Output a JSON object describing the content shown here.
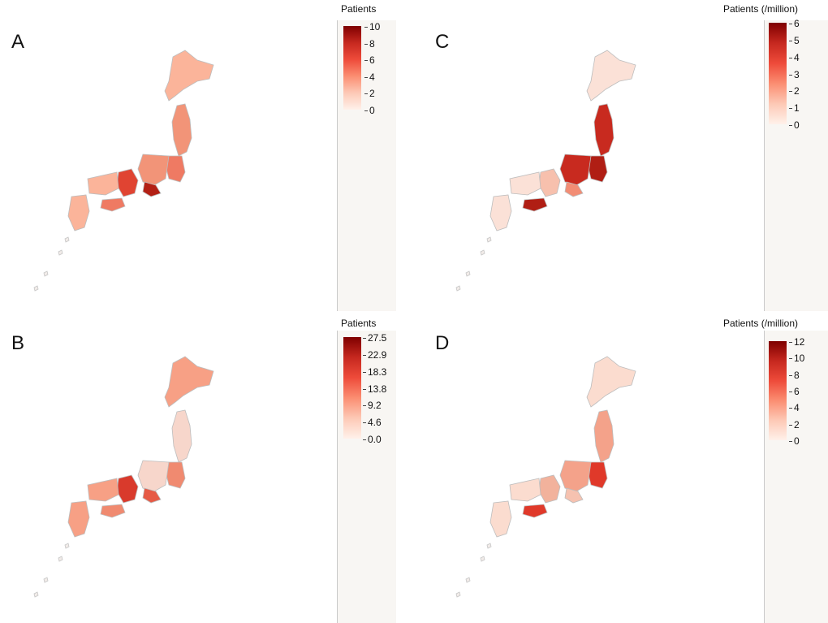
{
  "panels": [
    {
      "letter": "A",
      "legend_title": "Patients",
      "ticks": [
        "10",
        "8",
        "6",
        "4",
        "2",
        "0"
      ],
      "colors": {
        "hokkaido": "#fbb49a",
        "tohoku": "#f29478",
        "kansai": "#e04432",
        "tokai": "#b32015",
        "accent": "#ef7a63"
      }
    },
    {
      "letter": "B",
      "legend_title": "Patients",
      "ticks": [
        "27.5",
        "22.9",
        "18.3",
        "13.8",
        "9.2",
        "4.6",
        "0.0"
      ],
      "colors": {
        "hokkaido": "#f7a085",
        "tohoku": "#f7d6cb",
        "kansai": "#d93a2c",
        "tokai": "#e65a45",
        "accent": "#f08a70"
      }
    },
    {
      "letter": "C",
      "legend_title": "Patients (/million)",
      "ticks": [
        "6",
        "5",
        "4",
        "3",
        "2",
        "1",
        "0"
      ],
      "colors": {
        "hokkaido": "#fbe1d7",
        "tohoku": "#c82a1f",
        "kansai": "#f7c0ad",
        "tokai": "#f28d75",
        "accent": "#b01e14"
      }
    },
    {
      "letter": "D",
      "legend_title": "Patients (/million)",
      "ticks": [
        "12",
        "10",
        "8",
        "6",
        "4",
        "2",
        "0"
      ],
      "colors": {
        "hokkaido": "#fbdccf",
        "tohoku": "#f4a28a",
        "kansai": "#f2b29c",
        "tokai": "#f6c2b0",
        "accent": "#e0392a"
      }
    }
  ]
}
